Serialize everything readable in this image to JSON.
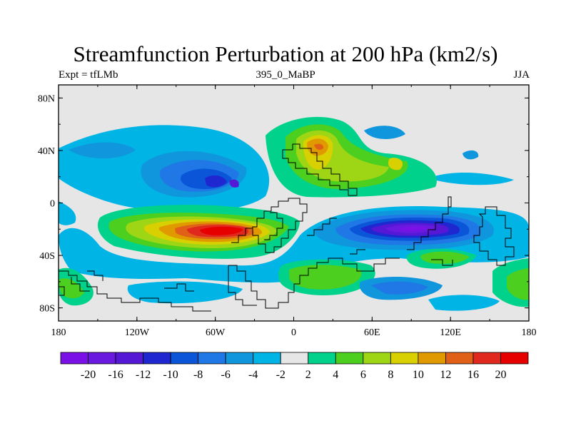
{
  "title": "Streamfunction Perturbation at 200 hPa (km2/s)",
  "subtitle_left": "Expt = tfLMb",
  "subtitle_center": "395_0_MaBP",
  "subtitle_right": "JJA",
  "y_ticks": [
    "80N",
    "40N",
    "0",
    "40S",
    "80S"
  ],
  "x_ticks": [
    "180",
    "120W",
    "60W",
    "0",
    "60E",
    "120E",
    "180"
  ],
  "colorbar": {
    "colors": [
      "#7a12e8",
      "#6a19de",
      "#5518d4",
      "#1f28d0",
      "#0a55d8",
      "#1f78e6",
      "#1096dc",
      "#00b4e6",
      "#e6e6e6",
      "#00d28c",
      "#4ccf1e",
      "#9ed616",
      "#d8d000",
      "#e09a00",
      "#e06018",
      "#e0281e",
      "#e60000"
    ],
    "labels": [
      "-20",
      "-16",
      "-12",
      "-10",
      "-8",
      "-6",
      "-4",
      "-2",
      "2",
      "4",
      "6",
      "8",
      "10",
      "12",
      "16",
      "20"
    ]
  },
  "chart_data": {
    "type": "heatmap",
    "title": "Streamfunction Perturbation at 200 hPa (km2/s)",
    "variable": "Streamfunction Perturbation",
    "level": "200 hPa",
    "units": "km2/s",
    "experiment": "tfLMb",
    "case": "395_0_MaBP",
    "season": "JJA",
    "contour_levels": [
      -20,
      -16,
      -12,
      -10,
      -8,
      -6,
      -4,
      -2,
      2,
      4,
      6,
      8,
      10,
      12,
      16,
      20
    ],
    "xlim": [
      -180,
      180
    ],
    "ylim": [
      -90,
      90
    ],
    "features": [
      {
        "lon": -45,
        "lat": -20,
        "value": 20
      },
      {
        "lon": 100,
        "lat": -18,
        "value": -20
      },
      {
        "lon": -75,
        "lat": 15,
        "value": -10
      },
      {
        "lon": 22,
        "lat": 45,
        "value": 16
      },
      {
        "lon": 80,
        "lat": -40,
        "value": 6
      },
      {
        "lon": 10,
        "lat": -50,
        "value": 6
      },
      {
        "lon": -165,
        "lat": -60,
        "value": 6
      },
      {
        "lon": 100,
        "lat": -65,
        "value": -4
      },
      {
        "lon": 180,
        "lat": -60,
        "value": 6
      }
    ]
  }
}
